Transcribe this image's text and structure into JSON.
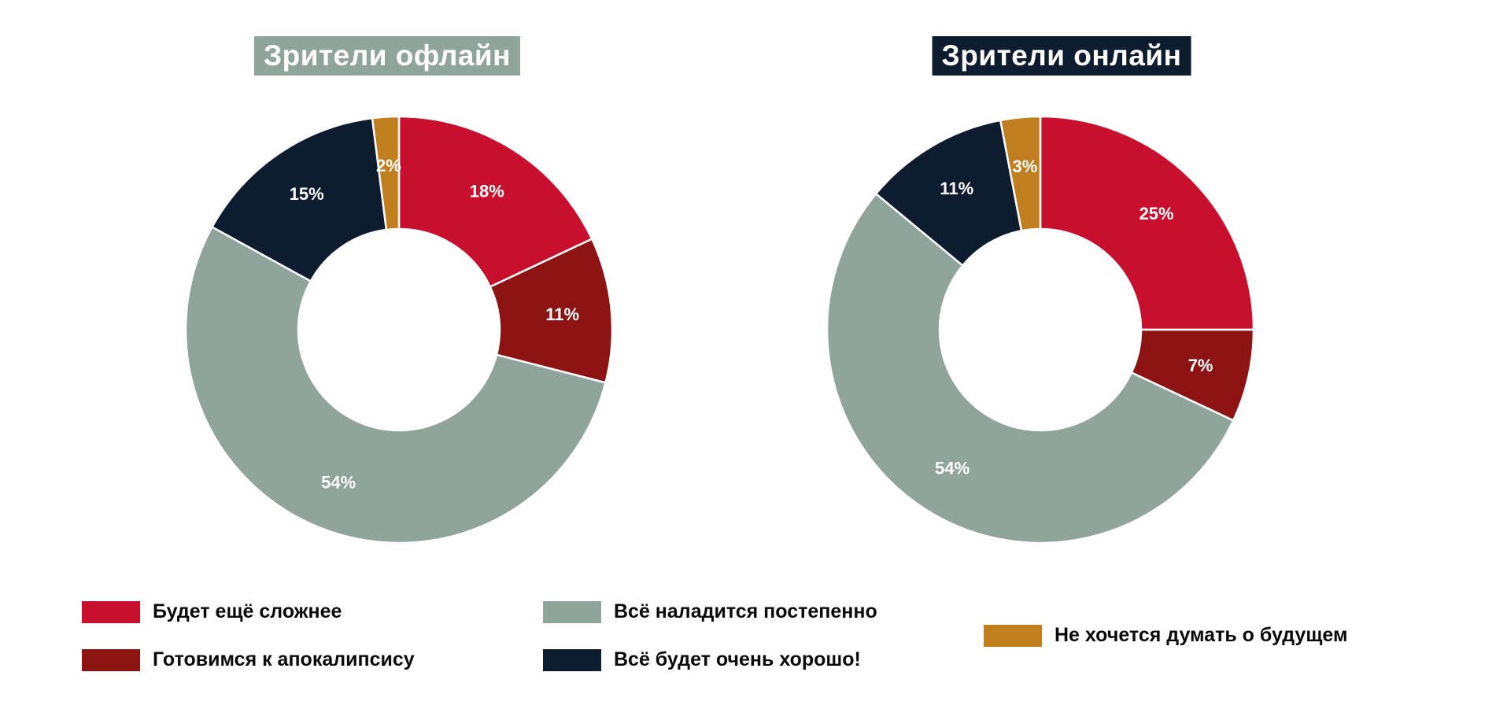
{
  "page": {
    "background": "#ffffff"
  },
  "colors": {
    "red": "#C8102E",
    "dark_red": "#8E1414",
    "sage": "#8FA49B",
    "navy": "#0E1C30",
    "gold": "#C17E1E",
    "slice_label_text": "#ffffff",
    "legend_text": "#0a0a0a",
    "title_text": "#ffffff"
  },
  "chart_data": [
    {
      "type": "pie",
      "variant": "donut",
      "title": "Зрители офлайн",
      "title_bg": "#8FA49B",
      "categories": [
        "Будет ещё сложнее",
        "Готовимся к апокалипсису",
        "Всё наладится постепенно",
        "Всё будет очень хорошо!",
        "Не хочется думать о будущем"
      ],
      "values": [
        18,
        11,
        54,
        15,
        2
      ],
      "labels": [
        "18%",
        "11%",
        "54%",
        "15%",
        "2%"
      ],
      "colors": [
        "#C8102E",
        "#8E1414",
        "#8FA49B",
        "#0E1C30",
        "#C17E1E"
      ],
      "start_angle_deg": 0,
      "direction": "clockwise",
      "legend_position": "bottom"
    },
    {
      "type": "pie",
      "variant": "donut",
      "title": "Зрители онлайн",
      "title_bg": "#0E1C30",
      "categories": [
        "Будет ещё сложнее",
        "Готовимся к апокалипсису",
        "Всё наладится постепенно",
        "Всё будет очень хорошо!",
        "Не хочется думать о будущем"
      ],
      "values": [
        25,
        7,
        54,
        11,
        3
      ],
      "labels": [
        "25%",
        "7%",
        "54%",
        "11%",
        "3%"
      ],
      "colors": [
        "#C8102E",
        "#8E1414",
        "#8FA49B",
        "#0E1C30",
        "#C17E1E"
      ],
      "start_angle_deg": 0,
      "direction": "clockwise",
      "legend_position": "bottom"
    }
  ],
  "legend": {
    "items": [
      {
        "label": "Будет ещё сложнее",
        "color": "#C8102E"
      },
      {
        "label": "Готовимся к апокалипсису",
        "color": "#8E1414"
      },
      {
        "label": "Всё наладится постепенно",
        "color": "#8FA49B"
      },
      {
        "label": "Всё будет очень хорошо!",
        "color": "#0E1C30"
      },
      {
        "label": "Не хочется думать о будущем",
        "color": "#C17E1E"
      }
    ]
  }
}
